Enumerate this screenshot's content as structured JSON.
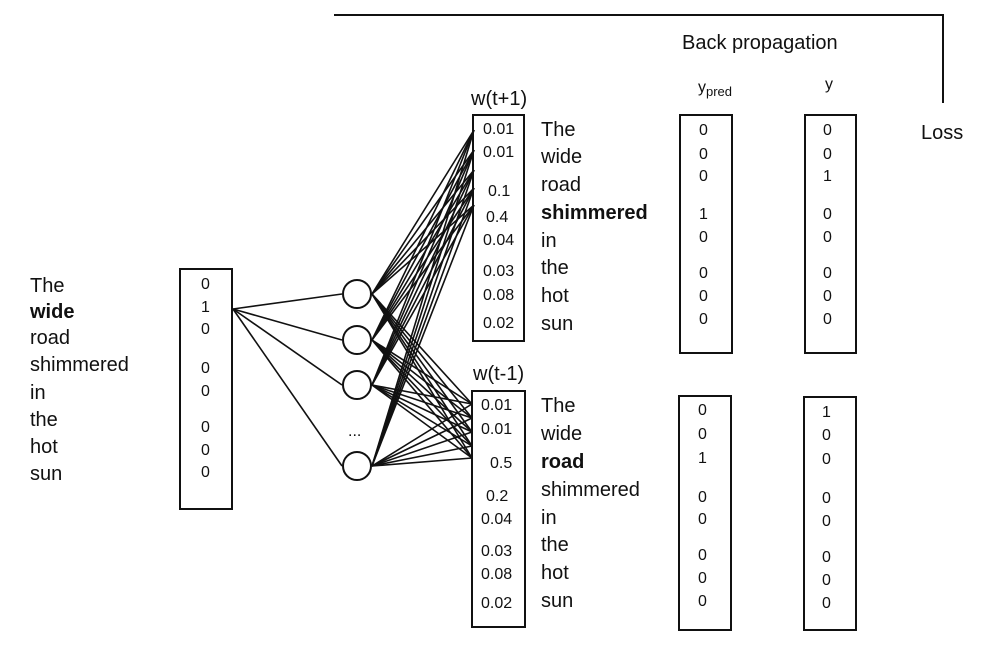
{
  "backprop_label": "Back propagation",
  "loss_label": "Loss",
  "ypred_label": "y",
  "ypred_sub": "pred",
  "y_label": "y",
  "hidden_ellipsis": "...",
  "input": {
    "words": [
      "The",
      "wide",
      "road",
      "shimmered",
      "in",
      "the",
      "hot",
      "sun"
    ],
    "bold_index": 1,
    "values": [
      "0",
      "1",
      "0",
      "0",
      "0",
      "0",
      "0",
      "0"
    ]
  },
  "output_top": {
    "title": "w(t+1)",
    "probs": [
      "0.01",
      "0.01",
      "0.1",
      "0.4",
      "0.04",
      "0.03",
      "0.08",
      "0.02"
    ],
    "words": [
      "The",
      "wide",
      "road",
      "shimmered",
      "in",
      "the",
      "hot",
      "sun"
    ],
    "bold_index": 3,
    "y_pred": [
      "0",
      "0",
      "0",
      "1",
      "0",
      "0",
      "0",
      "0"
    ],
    "y": [
      "0",
      "0",
      "1",
      "0",
      "0",
      "0",
      "0",
      "0"
    ]
  },
  "output_bottom": {
    "title": "w(t-1)",
    "probs": [
      "0.01",
      "0.01",
      "0.5",
      "0.2",
      "0.04",
      "0.03",
      "0.08",
      "0.02"
    ],
    "words": [
      "The",
      "wide",
      "road",
      "shimmered",
      "in",
      "the",
      "hot",
      "sun"
    ],
    "bold_index": 2,
    "y_pred": [
      "0",
      "0",
      "1",
      "0",
      "0",
      "0",
      "0",
      "0"
    ],
    "y": [
      "1",
      "0",
      "0",
      "0",
      "0",
      "0",
      "0",
      "0"
    ]
  }
}
